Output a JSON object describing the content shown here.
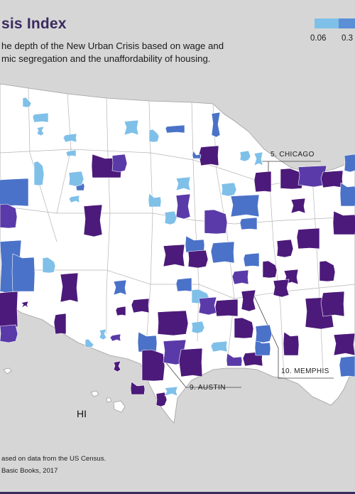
{
  "header": {
    "title": "sis Index",
    "subtitle_line1": "he depth of the New Urban Crisis based on wage and",
    "subtitle_line2": "mic segregation and the unaffordability of housing."
  },
  "legend": {
    "tick1": "0.06",
    "tick2": "0.3",
    "colors": [
      "#7fc0e8",
      "#5b8fd6"
    ]
  },
  "colors": {
    "background": "#d6d6d6",
    "land": "#ffffff",
    "border": "#9a9a9a",
    "light_blue": "#7fc0e8",
    "mid_blue": "#4a72c8",
    "violet": "#5a3aa8",
    "dark_purple": "#4c1a7a",
    "frame": "#3a2a5c"
  },
  "callouts": {
    "chicago": "5. CHICAGO",
    "memphis": "10. MEMPHIS",
    "austin": "9. AUSTIN"
  },
  "labels": {
    "hawaii": "HI"
  },
  "footer": {
    "source": "ased on data from the US Census.",
    "credit": "Basic Books, 2017"
  }
}
